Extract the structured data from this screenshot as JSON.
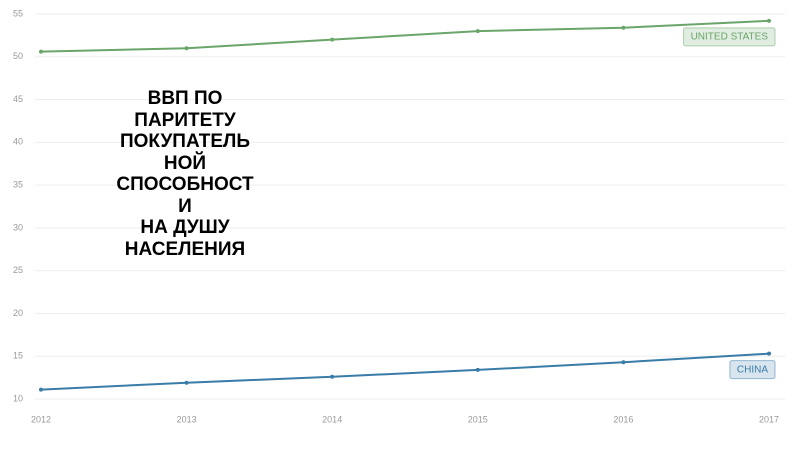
{
  "chart_data": {
    "type": "line",
    "title": [
      "ВВП ПО",
      "ПАРИТЕТУ",
      "ПОКУПАТЕЛЬ",
      "НОЙ",
      "СПОСОБНОСТ",
      "И",
      "НА ДУШУ",
      "НАСЕЛЕНИЯ"
    ],
    "categories": [
      "2012",
      "2013",
      "2014",
      "2015",
      "2016",
      "2017"
    ],
    "series": [
      {
        "name": "UNITED STATES",
        "color": "#6aa56a",
        "values": [
          50.6,
          51.0,
          52.0,
          53.0,
          53.4,
          54.2
        ]
      },
      {
        "name": "CHINA",
        "color": "#3a7ca8",
        "values": [
          11.1,
          11.9,
          12.6,
          13.4,
          14.3,
          15.3
        ]
      }
    ],
    "ylim": [
      10,
      55
    ],
    "yticks": [
      10,
      15,
      20,
      25,
      30,
      35,
      40,
      45,
      50,
      55
    ],
    "grid": true
  }
}
